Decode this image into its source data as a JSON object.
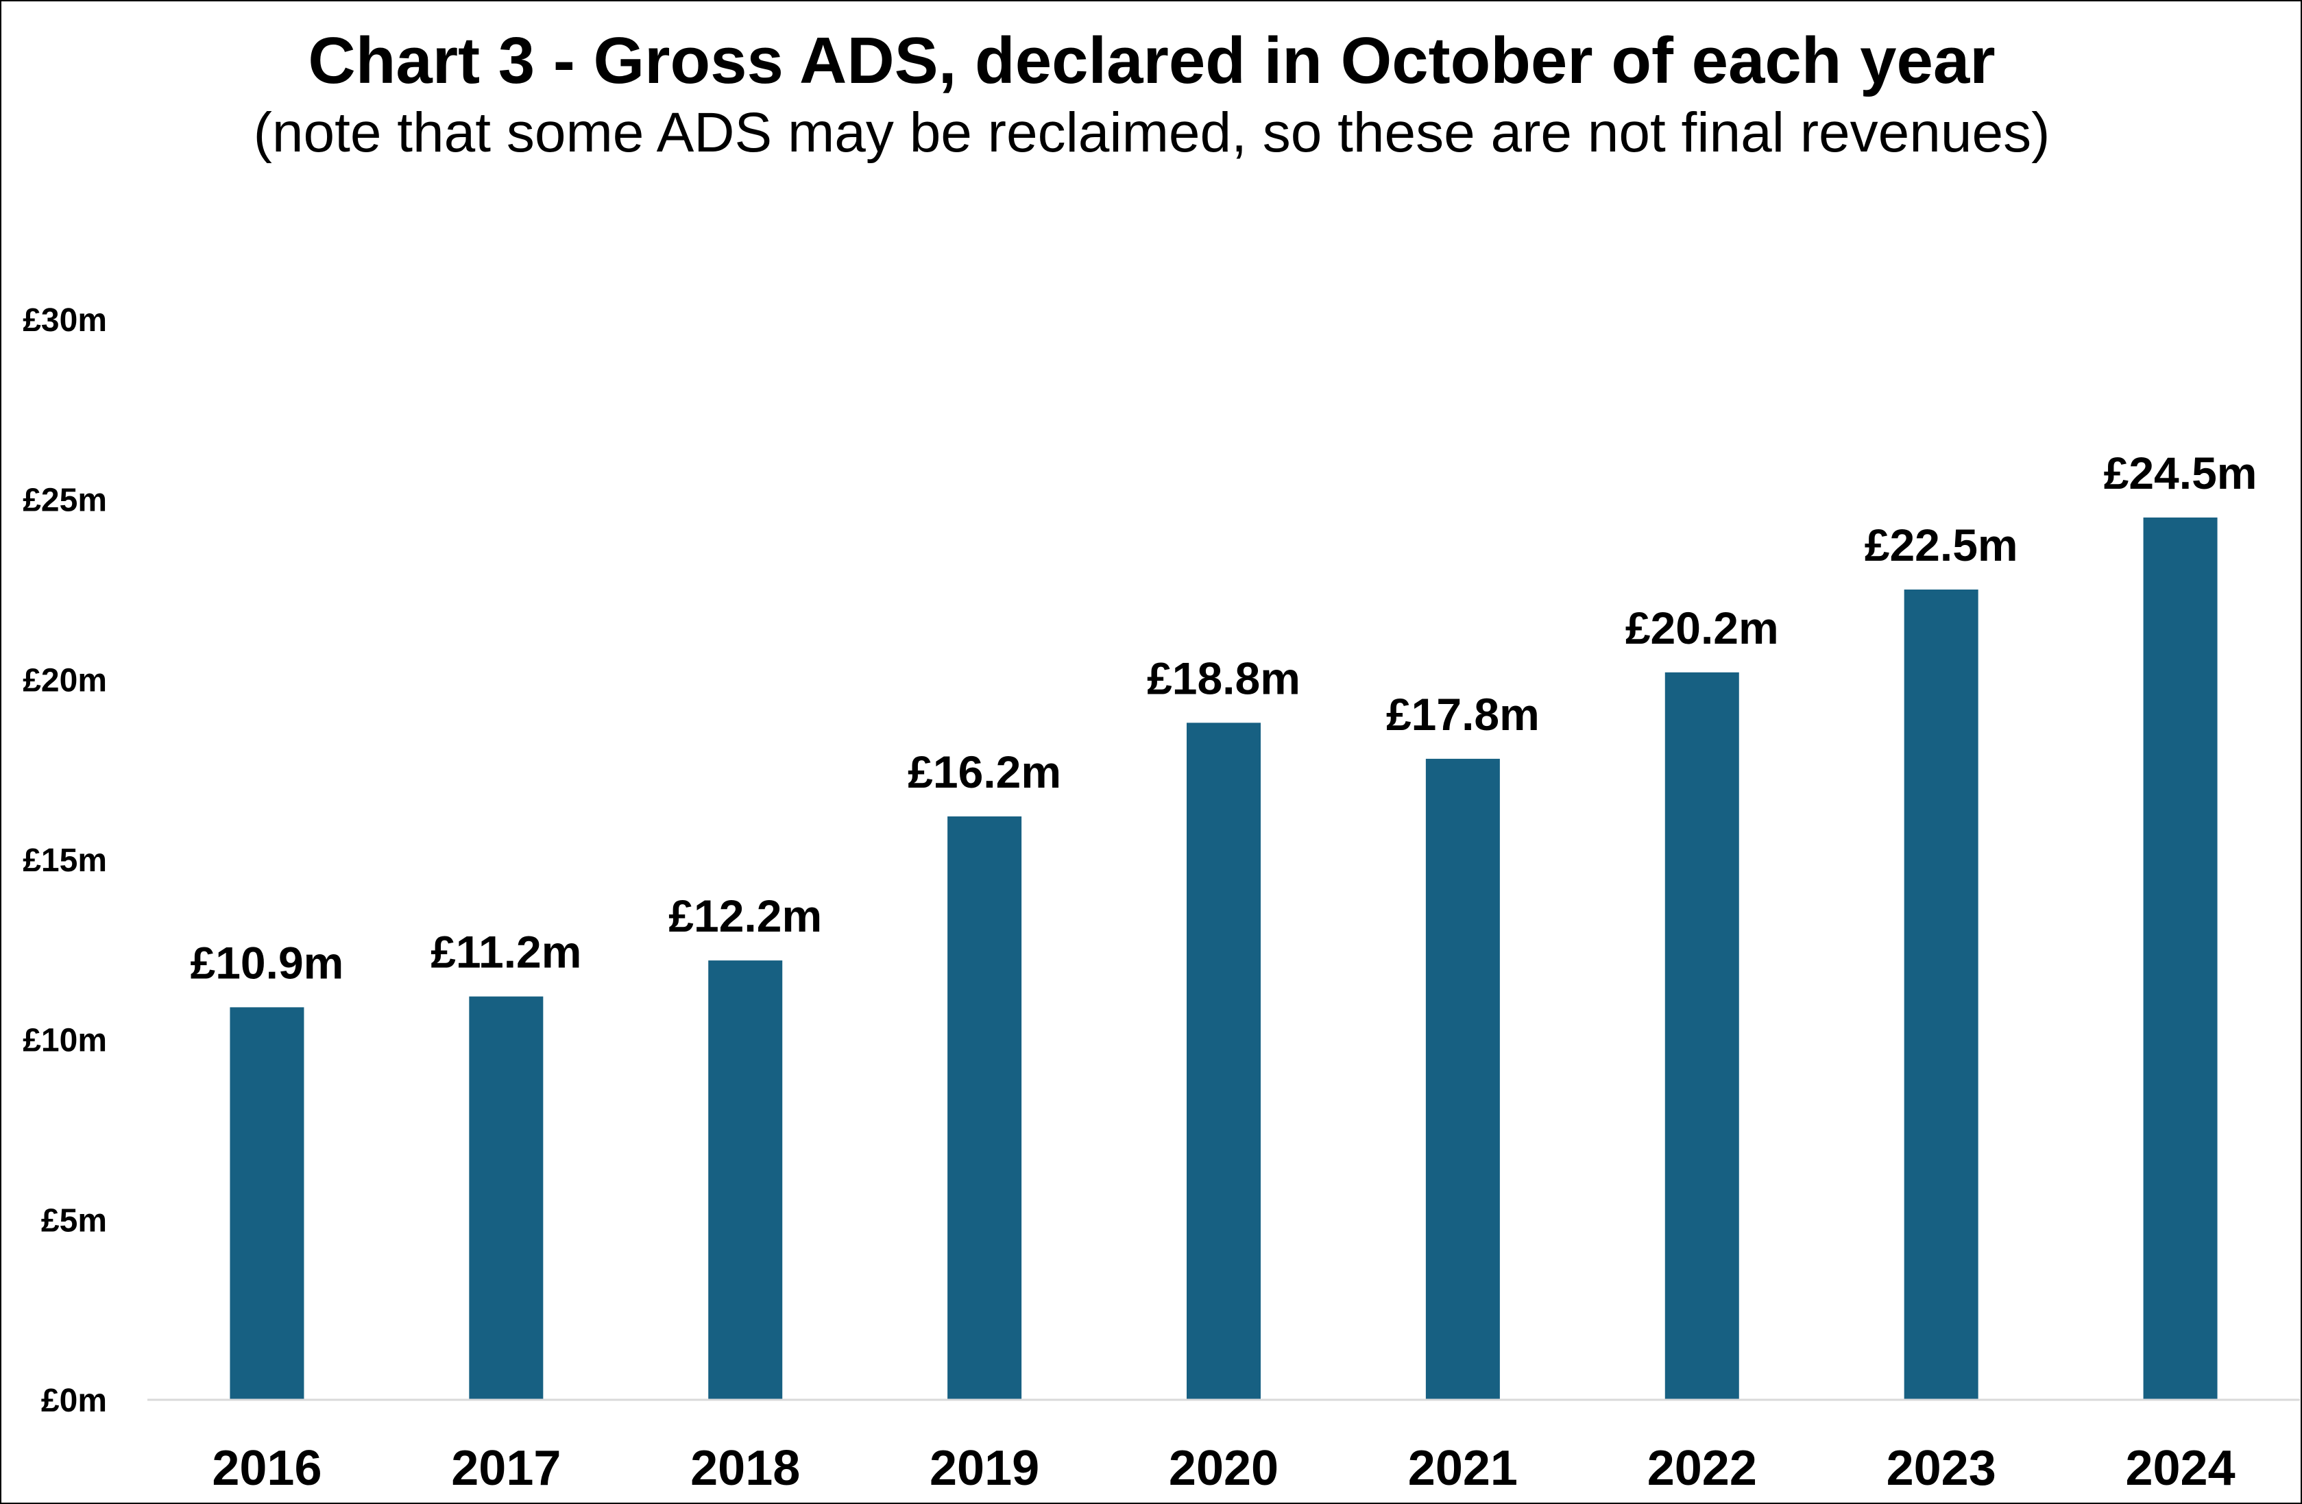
{
  "chart_data": {
    "type": "bar",
    "title": "Chart 3 - Gross ADS, declared in October of each year",
    "subtitle": "(note that some ADS may be reclaimed, so these are not final revenues)",
    "xlabel": "",
    "ylabel": "",
    "categories": [
      "2016",
      "2017",
      "2018",
      "2019",
      "2020",
      "2021",
      "2022",
      "2023",
      "2024"
    ],
    "values": [
      10.9,
      11.2,
      12.2,
      16.2,
      18.8,
      17.8,
      20.2,
      22.5,
      24.5
    ],
    "value_labels": [
      "£10.9m",
      "£11.2m",
      "£12.2m",
      "£16.2m",
      "£18.8m",
      "£17.8m",
      "£20.2m",
      "£22.5m",
      "£24.5m"
    ],
    "ylim": [
      0,
      30
    ],
    "y_ticks": [
      0,
      5,
      10,
      15,
      20,
      25,
      30
    ],
    "y_tick_labels": [
      "£0m",
      "£5m",
      "£10m",
      "£15m",
      "£20m",
      "£25m",
      "£30m"
    ],
    "unit": "£m",
    "grid": false,
    "legend": "none",
    "colors": {
      "bar": "#176082",
      "axis": "#d9d9d9",
      "text": "#000000"
    }
  }
}
